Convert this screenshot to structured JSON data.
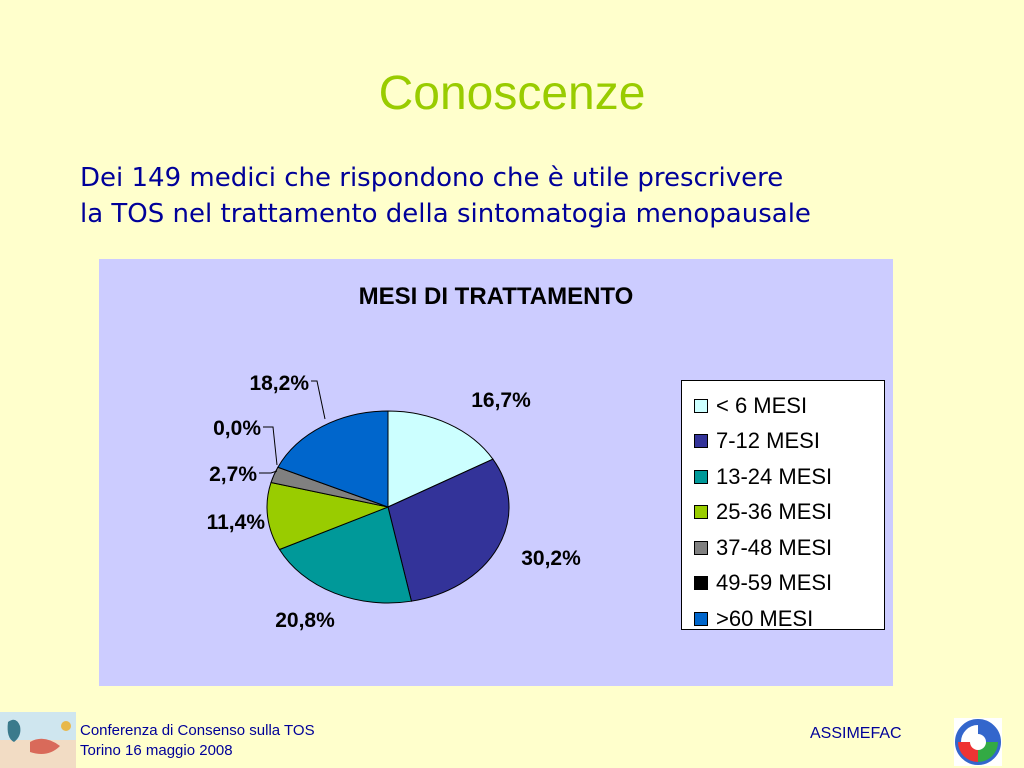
{
  "slide": {
    "title": "Conoscenze",
    "subtitle_line1": "Dei 149 medici che rispondono che è utile prescrivere",
    "subtitle_line2": "la TOS nel trattamento della sintomatogia menopausale"
  },
  "chart_data": {
    "type": "pie",
    "title": "MESI DI TRATTAMENTO",
    "categories": [
      "< 6 MESI",
      "7-12 MESI",
      "13-24 MESI",
      "25-36 MESI",
      "37-48 MESI",
      "49-59 MESI",
      ">60 MESI"
    ],
    "values": [
      16.7,
      30.2,
      20.8,
      11.4,
      2.7,
      0.0,
      18.2
    ],
    "labels": [
      "16,7%",
      "30,2%",
      "20,8%",
      "11,4%",
      "2,7%",
      "0,0%",
      "18,2%"
    ],
    "colors": [
      "#ccffff",
      "#333399",
      "#009999",
      "#99cc00",
      "#808080",
      "#000000",
      "#0066cc"
    ],
    "legend_position": "right"
  },
  "footer": {
    "line1": "Conferenza di Consenso sulla TOS",
    "line2": "Torino 16 maggio 2008",
    "organization": "ASSIMEFAC"
  }
}
